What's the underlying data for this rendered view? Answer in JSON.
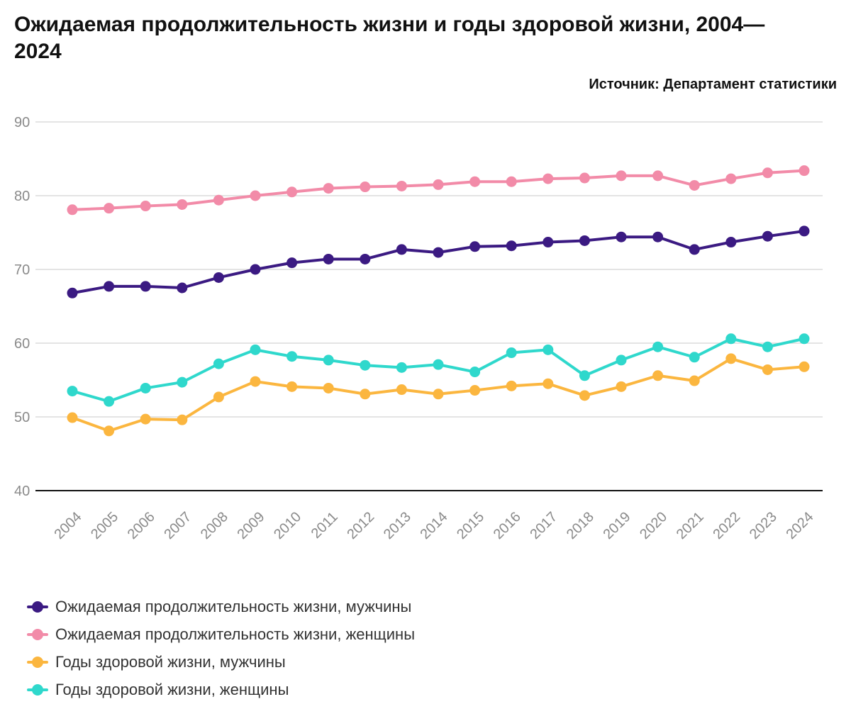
{
  "title": "Ожидаемая продолжительность жизни и годы здоровой жизни, 2004—2024",
  "source": "Источник: Департамент статистики",
  "chart_data": {
    "type": "line",
    "title": "Ожидаемая продолжительность жизни и годы здоровой жизни, 2004—2024",
    "xlabel": "",
    "ylabel": "",
    "ylim": [
      40,
      90
    ],
    "yticks": [
      40,
      50,
      60,
      70,
      80,
      90
    ],
    "grid": true,
    "legend_position": "bottom",
    "categories": [
      "2004",
      "2005",
      "2006",
      "2007",
      "2008",
      "2009",
      "2010",
      "2011",
      "2012",
      "2013",
      "2014",
      "2015",
      "2016",
      "2017",
      "2018",
      "2019",
      "2020",
      "2021",
      "2022",
      "2023",
      "2024"
    ],
    "series": [
      {
        "name": "Ожидаемая продолжительность жизни, мужчины",
        "color": "#3b1a82",
        "values": [
          66.8,
          67.7,
          67.7,
          67.5,
          68.9,
          70.0,
          70.9,
          71.4,
          71.4,
          72.7,
          72.3,
          73.1,
          73.2,
          73.7,
          73.9,
          74.4,
          74.4,
          72.7,
          73.7,
          74.5,
          75.2
        ]
      },
      {
        "name": "Ожидаемая продолжительность жизни, женщины",
        "color": "#f28ba8",
        "values": [
          78.1,
          78.3,
          78.6,
          78.8,
          79.4,
          80.0,
          80.5,
          81.0,
          81.2,
          81.3,
          81.5,
          81.9,
          81.9,
          82.3,
          82.4,
          82.7,
          82.7,
          81.4,
          82.3,
          83.1,
          83.4
        ]
      },
      {
        "name": "Годы здоровой жизни, мужчины",
        "color": "#fbb63f",
        "values": [
          49.9,
          48.1,
          49.7,
          49.6,
          52.7,
          54.8,
          54.1,
          53.9,
          53.1,
          53.7,
          53.1,
          53.6,
          54.2,
          54.5,
          52.9,
          54.1,
          55.6,
          54.9,
          57.9,
          56.4,
          56.8
        ]
      },
      {
        "name": "Годы здоровой жизни, женщины",
        "color": "#2fd8cc",
        "values": [
          53.5,
          52.1,
          53.9,
          54.7,
          57.2,
          59.1,
          58.2,
          57.7,
          57.0,
          56.7,
          57.1,
          56.1,
          58.7,
          59.1,
          55.6,
          57.7,
          59.5,
          58.1,
          60.6,
          59.5,
          60.6
        ]
      }
    ]
  }
}
